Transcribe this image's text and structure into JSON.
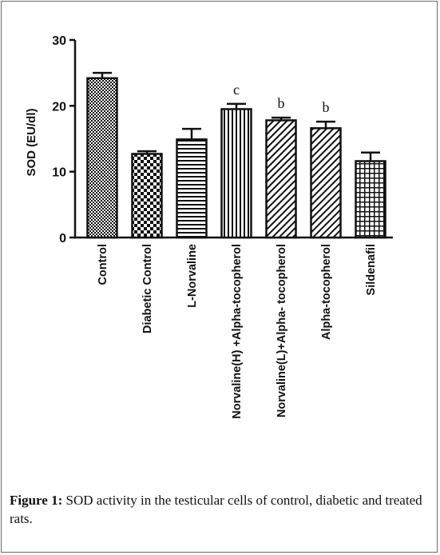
{
  "caption": {
    "label": "Figure 1:",
    "text": " SOD activity in the testicular cells of control, diabetic and treated rats."
  },
  "chart_data": {
    "type": "bar",
    "ylabel": "SOD (EU/dl)",
    "xlabel": "",
    "ylim": [
      0,
      30
    ],
    "yticks": [
      0,
      10,
      20,
      30
    ],
    "grid": false,
    "categories": [
      "Control",
      "Diabetic Control",
      "L-Norvaline",
      "Norvaline(H) +Alpha-tocopherol",
      "Norvaline(L)+Alpha- tocopherol",
      "Alpha-tocopherol",
      "Sildenafil"
    ],
    "values": [
      24.2,
      12.7,
      14.9,
      19.5,
      17.8,
      16.6,
      11.6
    ],
    "errors": [
      0.8,
      0.4,
      1.6,
      0.8,
      0.4,
      1.0,
      1.3
    ],
    "annotations": [
      "",
      "",
      "",
      "c",
      "b",
      "b",
      ""
    ],
    "patterns": [
      "dots",
      "checker",
      "hlines",
      "vlines",
      "diagonal",
      "diagonal",
      "grid"
    ]
  }
}
